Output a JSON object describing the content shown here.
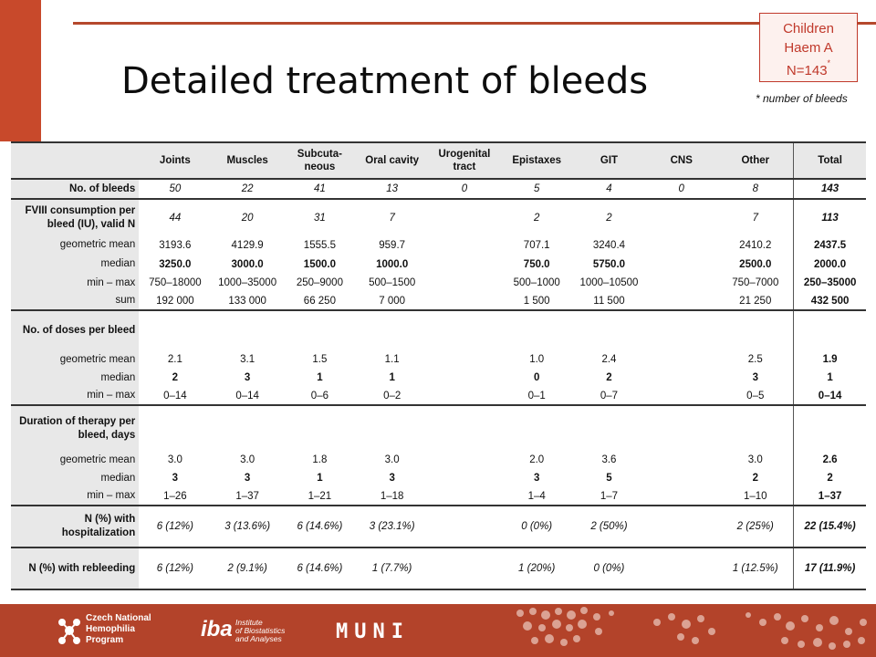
{
  "title": "Detailed treatment of bleeds",
  "badge": {
    "line1": "Children",
    "line2": "Haem A",
    "line3": "N=143",
    "mark": "*"
  },
  "footnote": "* number of bleeds",
  "table": {
    "columns": [
      "Joints",
      "Muscles",
      "Subcuta-neous",
      "Oral cavity",
      "Urogenital tract",
      "Epistaxes",
      "GIT",
      "CNS",
      "Other",
      "Total"
    ],
    "rows": [
      {
        "label": "No. of bleeds",
        "values": [
          "50",
          "22",
          "41",
          "13",
          "0",
          "5",
          "4",
          "0",
          "8",
          "143"
        ]
      },
      {
        "label": "FVIII consumption per bleed (IU), valid N",
        "values": [
          "44",
          "20",
          "31",
          "7",
          "",
          "2",
          "2",
          "",
          "7",
          "113"
        ]
      },
      {
        "label": "geometric mean",
        "values": [
          "3193.6",
          "4129.9",
          "1555.5",
          "959.7",
          "",
          "707.1",
          "3240.4",
          "",
          "2410.2",
          "2437.5"
        ]
      },
      {
        "label": "median",
        "values": [
          "3250.0",
          "3000.0",
          "1500.0",
          "1000.0",
          "",
          "750.0",
          "5750.0",
          "",
          "2500.0",
          "2000.0"
        ]
      },
      {
        "label": "min – max",
        "values": [
          "750–18000",
          "1000–35000",
          "250–9000",
          "500–1500",
          "",
          "500–1000",
          "1000–10500",
          "",
          "750–7000",
          "250–35000"
        ]
      },
      {
        "label": "sum",
        "values": [
          "192 000",
          "133 000",
          "66 250",
          "7 000",
          "",
          "1 500",
          "11 500",
          "",
          "21 250",
          "432 500"
        ]
      },
      {
        "label": "No. of doses per bleed",
        "values": [
          "",
          "",
          "",
          "",
          "",
          "",
          "",
          "",
          "",
          ""
        ]
      },
      {
        "label": "geometric mean",
        "values": [
          "2.1",
          "3.1",
          "1.5",
          "1.1",
          "",
          "1.0",
          "2.4",
          "",
          "2.5",
          "1.9"
        ]
      },
      {
        "label": "median",
        "values": [
          "2",
          "3",
          "1",
          "1",
          "",
          "0",
          "2",
          "",
          "3",
          "1"
        ]
      },
      {
        "label": "min – max",
        "values": [
          "0–14",
          "0–14",
          "0–6",
          "0–2",
          "",
          "0–1",
          "0–7",
          "",
          "0–5",
          "0–14"
        ]
      },
      {
        "label": "Duration of therapy per bleed, days",
        "values": [
          "",
          "",
          "",
          "",
          "",
          "",
          "",
          "",
          "",
          ""
        ]
      },
      {
        "label": "geometric mean",
        "values": [
          "3.0",
          "3.0",
          "1.8",
          "3.0",
          "",
          "2.0",
          "3.6",
          "",
          "3.0",
          "2.6"
        ]
      },
      {
        "label": "median",
        "values": [
          "3",
          "3",
          "1",
          "3",
          "",
          "3",
          "5",
          "",
          "2",
          "2"
        ]
      },
      {
        "label": "min – max",
        "values": [
          "1–26",
          "1–37",
          "1–21",
          "1–18",
          "",
          "1–4",
          "1–7",
          "",
          "1–10",
          "1–37"
        ]
      },
      {
        "label": "N (%) with hospitalization",
        "values": [
          "6 (12%)",
          "3 (13.6%)",
          "6 (14.6%)",
          "3 (23.1%)",
          "",
          "0 (0%)",
          "2 (50%)",
          "",
          "2 (25%)",
          "22 (15.4%)"
        ]
      },
      {
        "label": "N (%) with rebleeding",
        "values": [
          "6 (12%)",
          "2 (9.1%)",
          "6 (14.6%)",
          "1 (7.7%)",
          "",
          "1 (20%)",
          "0 (0%)",
          "",
          "1 (12.5%)",
          "17 (11.9%)"
        ]
      }
    ]
  },
  "footer": {
    "czech_logo": [
      "Czech National",
      "Hemophilia",
      "Program"
    ],
    "iba_big": "iba",
    "iba_small": [
      "Institute",
      "of Biostatistics",
      "and Analyses"
    ],
    "muni": "MUNI",
    "color": "#b3432a"
  },
  "colors": {
    "accent": "#c8492b",
    "badge_border": "#c0392b",
    "header_fill": "#e8e8e8"
  }
}
